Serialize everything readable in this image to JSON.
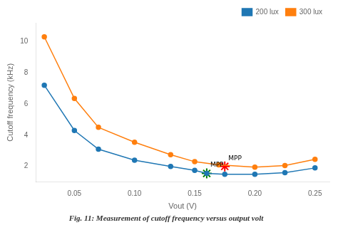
{
  "chart_data": {
    "type": "line",
    "caption": "Fig. 11: Measurement of cutoff frequency versus output volt",
    "xlabel": "Vout (V)",
    "ylabel": "Cutoff frequency (kHz)",
    "series": [
      {
        "name": "200 lux",
        "color": "#1f77b4",
        "marker": "circle",
        "x": [
          0.025,
          0.05,
          0.07,
          0.1,
          0.13,
          0.15,
          0.16,
          0.175,
          0.2,
          0.225,
          0.25
        ],
        "values": [
          7.2,
          4.3,
          3.1,
          2.4,
          2.0,
          1.75,
          1.55,
          1.5,
          1.5,
          1.6,
          1.9
        ]
      },
      {
        "name": "300 lux",
        "color": "#ff7f0e",
        "marker": "circle",
        "x": [
          0.025,
          0.05,
          0.07,
          0.1,
          0.13,
          0.15,
          0.17,
          0.2,
          0.225,
          0.25
        ],
        "values": [
          10.3,
          6.35,
          4.5,
          3.55,
          2.75,
          2.3,
          2.1,
          1.95,
          2.05,
          2.45
        ]
      }
    ],
    "annotations": [
      {
        "text": "MPP",
        "x": 0.16,
        "y": 1.55,
        "marker": "star",
        "color": "green"
      },
      {
        "text": "MPP",
        "x": 0.175,
        "y": 2.0,
        "marker": "star",
        "color": "red"
      }
    ],
    "xlim": [
      0.018,
      0.262
    ],
    "ylim": [
      1.0,
      11.2
    ],
    "xticks": [
      0.05,
      {
        "value": 0.1,
        "label": "0.10"
      },
      0.15,
      {
        "value": 0.2,
        "label": "0.20"
      },
      0.25
    ],
    "yticks": [
      2,
      4,
      6,
      8,
      10
    ],
    "grid": false,
    "legend": "upper right"
  }
}
